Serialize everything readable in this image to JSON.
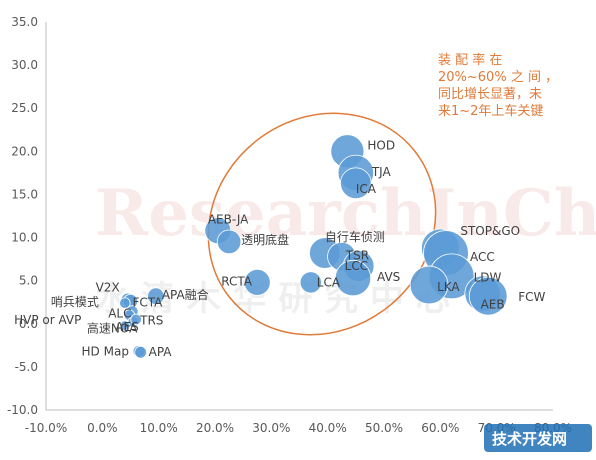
{
  "chart_data": {
    "type": "scatter",
    "bubble": true,
    "xlim": [
      -10,
      80
    ],
    "ylim": [
      -10,
      35
    ],
    "x_ticks": [
      "-10.0%",
      "0.0%",
      "10.0%",
      "20.0%",
      "30.0%",
      "40.0%",
      "50.0%",
      "60.0%",
      "70.0%",
      "80.0%"
    ],
    "y_ticks": [
      "-10.0",
      "-5.0",
      "0.0",
      "5.0",
      "10.0",
      "15.0",
      "20.0",
      "25.0",
      "30.0",
      "35.0"
    ],
    "grid": false,
    "bubble_color": "#5B9BD5",
    "annotation_color": "#E07B39",
    "points": [
      {
        "label": "HOD",
        "x": 43.5,
        "y": 20.0,
        "r": 1.4
      },
      {
        "label": "TJA",
        "x": 45.0,
        "y": 17.5,
        "r": 1.5
      },
      {
        "label": "ICA",
        "x": 45.0,
        "y": 16.3,
        "r": 1.3
      },
      {
        "label": "AEB-JA",
        "x": 20.5,
        "y": 10.8,
        "r": 1.1
      },
      {
        "label": "透明底盘",
        "x": 22.5,
        "y": 9.5,
        "r": 1.0
      },
      {
        "label": "自行车侦测",
        "x": 39.5,
        "y": 8.2,
        "r": 1.3
      },
      {
        "label": "TSR",
        "x": 42.5,
        "y": 7.8,
        "r": 1.2
      },
      {
        "label": "LCC",
        "x": 45.5,
        "y": 6.7,
        "r": 1.3
      },
      {
        "label": "AVS",
        "x": 44.5,
        "y": 5.3,
        "r": 1.5
      },
      {
        "label": "RCTA",
        "x": 27.5,
        "y": 4.8,
        "r": 1.1
      },
      {
        "label": "LCA",
        "x": 37.0,
        "y": 4.8,
        "r": 0.9
      },
      {
        "label": "STOP&GO",
        "x": 60.0,
        "y": 8.8,
        "r": 1.6
      },
      {
        "label": "ACC",
        "x": 61.0,
        "y": 8.2,
        "r": 1.9
      },
      {
        "label": "LDW",
        "x": 62.0,
        "y": 5.5,
        "r": 1.9
      },
      {
        "label": "LKA",
        "x": 58.0,
        "y": 4.5,
        "r": 1.6
      },
      {
        "label": "AEB",
        "x": 67.5,
        "y": 3.5,
        "r": 1.5
      },
      {
        "label": "FCW",
        "x": 68.5,
        "y": 3.2,
        "r": 1.6
      },
      {
        "label": "APA融合",
        "x": 9.5,
        "y": 3.2,
        "r": 0.7
      },
      {
        "label": "V2X",
        "x": 4.5,
        "y": 2.8,
        "r": 0.55
      },
      {
        "label": "FCTA",
        "x": 5.0,
        "y": 2.6,
        "r": 0.6
      },
      {
        "label": "哨兵模式",
        "x": 4.0,
        "y": 2.4,
        "r": 0.45
      },
      {
        "label": "ALC",
        "x": 5.3,
        "y": 1.4,
        "r": 0.5
      },
      {
        "label": "HVP or AVP",
        "x": 4.8,
        "y": 1.0,
        "r": 0.45
      },
      {
        "label": "AES",
        "x": 5.5,
        "y": 0.2,
        "r": 0.45
      },
      {
        "label": "TRS",
        "x": 6.0,
        "y": 0.5,
        "r": 0.45
      },
      {
        "label": "高速NOA",
        "x": 4.0,
        "y": -0.2,
        "r": 0.4
      },
      {
        "label": "HD Map",
        "x": 6.5,
        "y": -3.2,
        "r": 0.5
      },
      {
        "label": "APA",
        "x": 6.8,
        "y": -3.3,
        "r": 0.5
      }
    ],
    "annotation": [
      "装 配 率 在",
      "20%~60% 之 间 ，",
      "同比增长显著，未",
      "来1~2年上车关键"
    ]
  },
  "watermark": {
    "en": "ResearchInChina",
    "cn": "水 清 木 华 研 究 中 心"
  },
  "corner_badge": "技术开发网"
}
